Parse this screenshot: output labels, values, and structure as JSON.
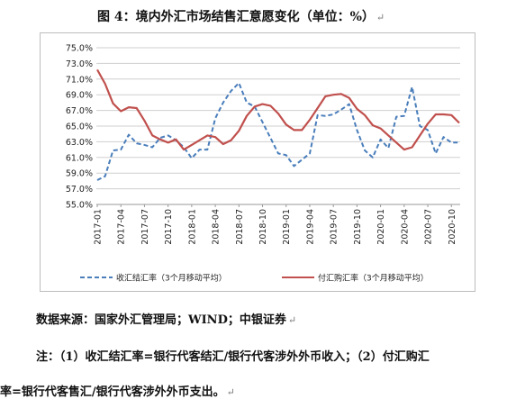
{
  "title": "图 4：境内外汇市场结售汇意愿变化（单位：%）",
  "source_text": "数据来源：国家外汇管理局；WIND；中银证券",
  "note_line1": "注：（1）收汇结汇率=银行代客结汇/银行代客涉外外币收入；（2）付汇购汇",
  "note_line2": "率=银行代客售汇/银行代客涉外外币支出。",
  "paragraph_mark": "↵",
  "chart_data": {
    "type": "line",
    "title": "",
    "xlabel": "",
    "ylabel": "",
    "ylim": [
      55,
      75
    ],
    "yticks": [
      "55.0%",
      "57.0%",
      "59.0%",
      "61.0%",
      "63.0%",
      "65.0%",
      "67.0%",
      "69.0%",
      "71.0%",
      "73.0%",
      "75.0%"
    ],
    "xticks": [
      "2017-01",
      "2017-04",
      "2017-07",
      "2017-10",
      "2018-01",
      "2018-04",
      "2018-07",
      "2018-10",
      "2019-01",
      "2019-04",
      "2019-07",
      "2019-10",
      "2020-01",
      "2020-04",
      "2020-07",
      "2020-10"
    ],
    "x": [
      "2017-01",
      "2017-02",
      "2017-03",
      "2017-04",
      "2017-05",
      "2017-06",
      "2017-07",
      "2017-08",
      "2017-09",
      "2017-10",
      "2017-11",
      "2017-12",
      "2018-01",
      "2018-02",
      "2018-03",
      "2018-04",
      "2018-05",
      "2018-06",
      "2018-07",
      "2018-08",
      "2018-09",
      "2018-10",
      "2018-11",
      "2018-12",
      "2019-01",
      "2019-02",
      "2019-03",
      "2019-04",
      "2019-05",
      "2019-06",
      "2019-07",
      "2019-08",
      "2019-09",
      "2019-10",
      "2019-11",
      "2019-12",
      "2020-01",
      "2020-02",
      "2020-03",
      "2020-04",
      "2020-05",
      "2020-06",
      "2020-07",
      "2020-08",
      "2020-09",
      "2020-10",
      "2020-11"
    ],
    "grid": true,
    "legend": "bottom",
    "series": [
      {
        "name": "收汇结汇率（3个月移动平均）",
        "style": "dashed",
        "color": "#4a7ebb",
        "values": [
          58.1,
          58.6,
          61.9,
          62.0,
          63.9,
          62.8,
          62.6,
          62.3,
          63.5,
          63.8,
          63.2,
          62.3,
          60.9,
          62.0,
          62.0,
          66.0,
          68.0,
          69.5,
          70.5,
          68.0,
          67.5,
          65.5,
          63.5,
          61.5,
          61.3,
          59.9,
          60.7,
          61.5,
          66.4,
          66.3,
          66.5,
          67.1,
          67.8,
          64.5,
          61.9,
          61.0,
          63.3,
          62.2,
          66.2,
          66.3,
          70.0,
          65.0,
          64.5,
          61.5,
          63.6,
          62.9,
          62.9
        ]
      },
      {
        "name": "付汇购汇率（3个月移动平均）",
        "style": "solid",
        "color": "#c0504d",
        "values": [
          72.2,
          70.4,
          67.9,
          66.9,
          67.4,
          67.3,
          65.7,
          63.8,
          63.3,
          62.9,
          63.3,
          62.0,
          62.6,
          63.2,
          63.8,
          63.6,
          62.7,
          63.2,
          64.4,
          66.3,
          67.5,
          67.8,
          67.6,
          66.6,
          65.2,
          64.5,
          64.5,
          65.8,
          67.3,
          68.8,
          69.0,
          69.1,
          68.6,
          67.2,
          66.4,
          65.1,
          64.7,
          63.8,
          62.9,
          62.0,
          62.3,
          63.8,
          65.3,
          66.5,
          66.5,
          66.4,
          65.4
        ]
      }
    ]
  }
}
